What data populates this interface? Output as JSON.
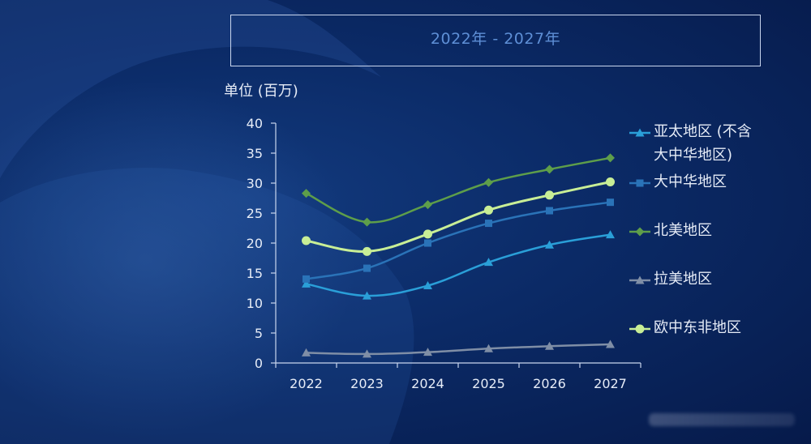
{
  "header": {
    "title": "2022年 - 2027年"
  },
  "chart_data": {
    "type": "line",
    "title": "2022年 - 2027年",
    "ylabel": "单位 (百万)",
    "xlabel": "",
    "x": [
      "2022",
      "2023",
      "2024",
      "2025",
      "2026",
      "2027"
    ],
    "ylim": [
      0,
      40
    ],
    "yticks": [
      0,
      5,
      10,
      15,
      20,
      25,
      30,
      35,
      40
    ],
    "grid": false,
    "legend_position": "right",
    "series": [
      {
        "name": "亚太地区 (不含大中华地区)",
        "legend_lines": [
          "亚太地区 (不含",
          "大中华地区)"
        ],
        "values": [
          13.2,
          11.2,
          12.9,
          16.8,
          19.7,
          21.4
        ],
        "color": "#2a9fd8",
        "marker": "triangle"
      },
      {
        "name": "大中华地区",
        "legend_lines": [
          "大中华地区"
        ],
        "values": [
          14.0,
          15.8,
          20.0,
          23.3,
          25.4,
          26.8
        ],
        "color": "#2a73b8",
        "marker": "square"
      },
      {
        "name": "北美地区",
        "legend_lines": [
          "北美地区"
        ],
        "values": [
          28.3,
          23.5,
          26.4,
          30.1,
          32.3,
          34.2
        ],
        "color": "#5e9e4a",
        "marker": "diamond"
      },
      {
        "name": "拉美地区",
        "legend_lines": [
          "拉美地区"
        ],
        "values": [
          1.7,
          1.5,
          1.8,
          2.4,
          2.8,
          3.1
        ],
        "color": "#7f8ea6",
        "marker": "triangle"
      },
      {
        "name": "欧中东非地区",
        "legend_lines": [
          "欧中东非地区"
        ],
        "values": [
          20.4,
          18.6,
          21.5,
          25.5,
          28.0,
          30.2
        ],
        "color": "#c8ee96",
        "marker": "circle"
      }
    ]
  }
}
